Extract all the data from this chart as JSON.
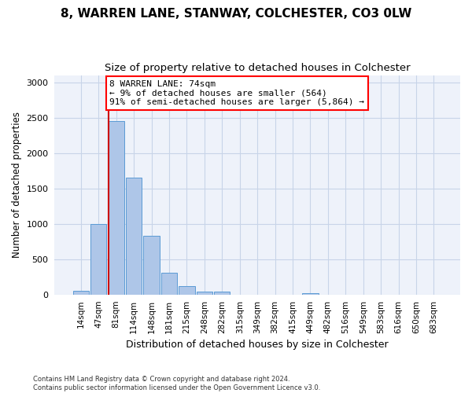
{
  "title1": "8, WARREN LANE, STANWAY, COLCHESTER, CO3 0LW",
  "title2": "Size of property relative to detached houses in Colchester",
  "xlabel": "Distribution of detached houses by size in Colchester",
  "ylabel": "Number of detached properties",
  "categories": [
    "14sqm",
    "47sqm",
    "81sqm",
    "114sqm",
    "148sqm",
    "181sqm",
    "215sqm",
    "248sqm",
    "282sqm",
    "315sqm",
    "349sqm",
    "382sqm",
    "415sqm",
    "449sqm",
    "482sqm",
    "516sqm",
    "549sqm",
    "583sqm",
    "616sqm",
    "650sqm",
    "683sqm"
  ],
  "values": [
    60,
    1000,
    2450,
    1650,
    830,
    310,
    130,
    50,
    45,
    0,
    0,
    0,
    0,
    30,
    0,
    0,
    0,
    0,
    0,
    0,
    0
  ],
  "bar_color": "#aec6e8",
  "bar_edge_color": "#5b9bd5",
  "annotation_box_text": "8 WARREN LANE: 74sqm\n← 9% of detached houses are smaller (564)\n91% of semi-detached houses are larger (5,864) →",
  "vline_color": "#cc0000",
  "ylim": [
    0,
    3100
  ],
  "yticks": [
    0,
    500,
    1000,
    1500,
    2000,
    2500,
    3000
  ],
  "footer_text": "Contains HM Land Registry data © Crown copyright and database right 2024.\nContains public sector information licensed under the Open Government Licence v3.0.",
  "bg_color": "#eef2fa",
  "grid_color": "#c8d4e8"
}
